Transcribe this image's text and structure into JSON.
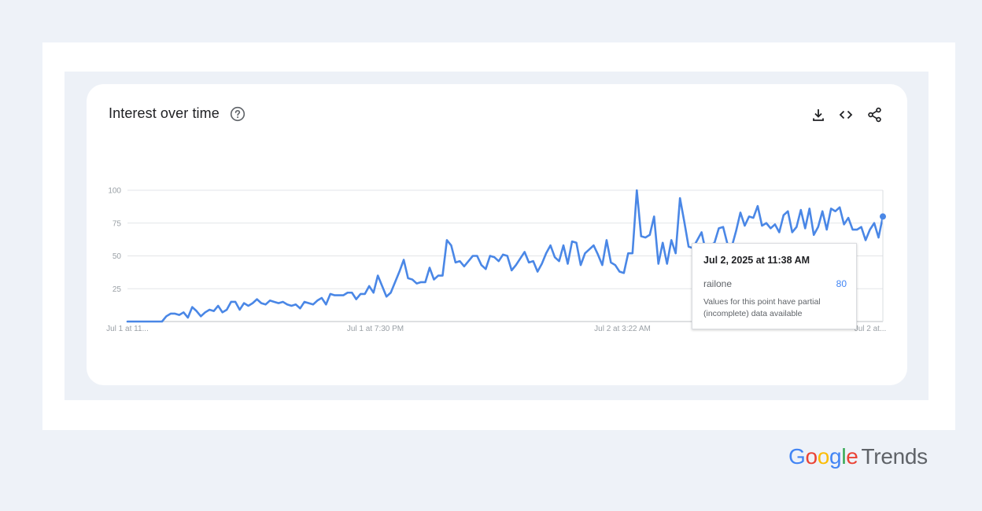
{
  "card": {
    "title": "Interest over time"
  },
  "icons": {
    "help": "help-circle-icon",
    "download": "download-icon",
    "embed": "code-embed-icon",
    "share": "share-icon"
  },
  "colors": {
    "line": "#4a87e6",
    "grid": "#e3e5e8",
    "axis": "#bdc1c6",
    "tooltip_value": "#4285f4"
  },
  "tooltip": {
    "date": "Jul 2, 2025 at 11:38 AM",
    "series": "railone",
    "value": "80",
    "note": "Values for this point have partial (incomplete) data available"
  },
  "brand": {
    "google_letters": [
      "G",
      "o",
      "o",
      "g",
      "l",
      "e"
    ],
    "trends": "Trends"
  },
  "chart_data": {
    "type": "line",
    "title": "Interest over time",
    "xlabel": "",
    "ylabel": "",
    "ylim": [
      0,
      100
    ],
    "y_ticks": [
      25,
      50,
      75,
      100
    ],
    "y_tick_labels": [
      "25",
      "50",
      "75",
      "100"
    ],
    "x_tick_labels": [
      "Jul 1 at 11...",
      "Jul 1 at 7:30 PM",
      "Jul 2 at 3:22 AM",
      "Jul 2 at..."
    ],
    "grid": true,
    "highlighted_point": {
      "label": "Jul 2, 2025 at 11:38 AM",
      "value": 80
    },
    "series": [
      {
        "name": "railone",
        "values": [
          0,
          0,
          0,
          0,
          0,
          0,
          0,
          0,
          0,
          4,
          6,
          6,
          5,
          7,
          3,
          11,
          8,
          4,
          7,
          9,
          8,
          12,
          7,
          9,
          15,
          15,
          9,
          14,
          12,
          14,
          17,
          14,
          13,
          16,
          15,
          14,
          15,
          13,
          12,
          13,
          10,
          15,
          14,
          13,
          16,
          18,
          13,
          21,
          20,
          20,
          20,
          22,
          22,
          17,
          21,
          21,
          27,
          22,
          35,
          27,
          19,
          22,
          30,
          38,
          47,
          33,
          32,
          29,
          30,
          30,
          41,
          32,
          35,
          35,
          62,
          58,
          45,
          46,
          42,
          46,
          50,
          50,
          43,
          40,
          50,
          49,
          46,
          51,
          50,
          39,
          43,
          48,
          53,
          45,
          46,
          38,
          44,
          52,
          58,
          49,
          46,
          58,
          44,
          61,
          60,
          43,
          52,
          55,
          58,
          51,
          43,
          62,
          45,
          43,
          38,
          37,
          52,
          52,
          100,
          65,
          64,
          66,
          80,
          44,
          60,
          44,
          62,
          52,
          94,
          76,
          57,
          56,
          62,
          68,
          53,
          58,
          60,
          71,
          72,
          59,
          57,
          69,
          83,
          73,
          80,
          79,
          88,
          73,
          75,
          71,
          74,
          68,
          81,
          84,
          68,
          72,
          85,
          71,
          86,
          66,
          72,
          84,
          70,
          86,
          84,
          87,
          74,
          79,
          70,
          70,
          72,
          62,
          70,
          75,
          64,
          80
        ]
      }
    ]
  }
}
